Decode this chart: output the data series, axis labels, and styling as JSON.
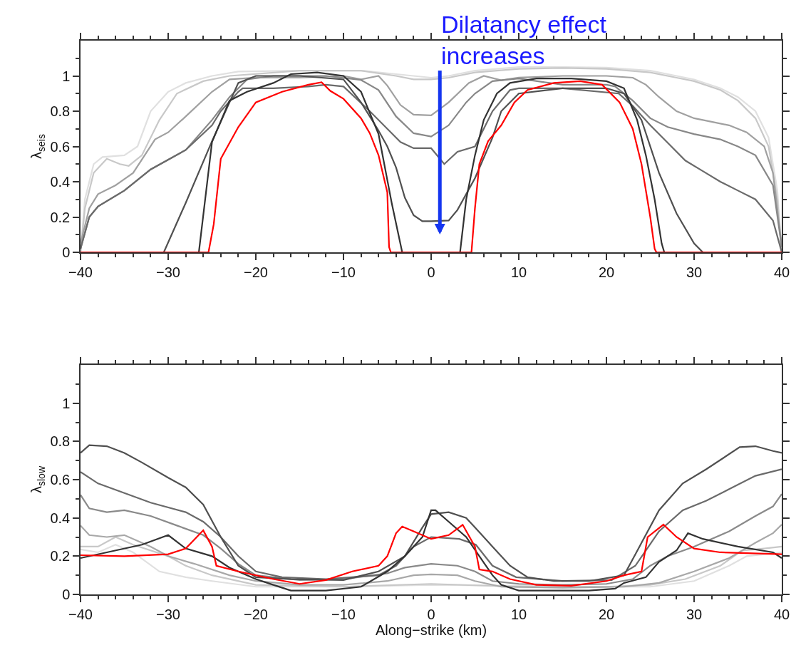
{
  "chart_data": [
    {
      "type": "line",
      "ylabel": "λ$_{seis}$",
      "xlim": [
        -40,
        40
      ],
      "ylim": [
        0,
        1.2
      ],
      "marker": "none",
      "line_style": "solid",
      "xticks": [
        {
          "value": -40,
          "label": "−40"
        },
        {
          "value": -38,
          "label": null
        },
        {
          "value": -36,
          "label": null
        },
        {
          "value": -34,
          "label": null
        },
        {
          "value": -32,
          "label": null
        },
        {
          "value": -30,
          "label": "−30"
        },
        {
          "value": -28,
          "label": null
        },
        {
          "value": -26,
          "label": null
        },
        {
          "value": -24,
          "label": null
        },
        {
          "value": -22,
          "label": null
        },
        {
          "value": -20,
          "label": "−20"
        },
        {
          "value": -18,
          "label": null
        },
        {
          "value": -16,
          "label": null
        },
        {
          "value": -14,
          "label": null
        },
        {
          "value": -12,
          "label": null
        },
        {
          "value": -10,
          "label": "−10"
        },
        {
          "value": -8,
          "label": null
        },
        {
          "value": -6,
          "label": null
        },
        {
          "value": -4,
          "label": null
        },
        {
          "value": -2,
          "label": null
        },
        0,
        {
          "value": 2,
          "label": null
        },
        {
          "value": 4,
          "label": null
        },
        {
          "value": 6,
          "label": null
        },
        {
          "value": 8,
          "label": null
        },
        10,
        {
          "value": 12,
          "label": null
        },
        {
          "value": 14,
          "label": null
        },
        {
          "value": 16,
          "label": null
        },
        {
          "value": 18,
          "label": null
        },
        20,
        {
          "value": 22,
          "label": null
        },
        {
          "value": 24,
          "label": null
        },
        {
          "value": 26,
          "label": null
        },
        {
          "value": 28,
          "label": null
        },
        30,
        {
          "value": 32,
          "label": null
        },
        {
          "value": 34,
          "label": null
        },
        {
          "value": 36,
          "label": null
        },
        {
          "value": 38,
          "label": null
        },
        40
      ],
      "yticks": [
        0,
        {
          "value": 0.1,
          "label": null
        },
        0.2,
        {
          "value": 0.3,
          "label": null
        },
        0.4,
        {
          "value": 0.5,
          "label": null
        },
        0.6,
        {
          "value": 0.7,
          "label": null
        },
        0.8,
        {
          "value": 0.9,
          "label": null
        },
        1,
        {
          "value": 1.1,
          "label": null
        }
      ],
      "annotations": [
        "Dilatancy effect\nincreases"
      ],
      "series": [
        {
          "color": "#e0e0e0",
          "x": [
            -40,
            -39.5,
            -38.5,
            -37.5,
            -35,
            -33.5,
            -32,
            -30,
            -28,
            -25,
            -22,
            -15,
            -8,
            -4,
            -2,
            0,
            2,
            5,
            10,
            15,
            20,
            25,
            28,
            30,
            33,
            35,
            37,
            38.5,
            39.5,
            40
          ],
          "values": [
            0,
            0.3,
            0.5,
            0.54,
            0.55,
            0.6,
            0.8,
            0.91,
            0.96,
            1.0,
            1.025,
            1.03,
            1.03,
            1.01,
            1.0,
            0.99,
            1.0,
            1.03,
            1.05,
            1.05,
            1.047,
            1.03,
            1.0,
            0.98,
            0.93,
            0.88,
            0.8,
            0.65,
            0.35,
            0
          ]
        },
        {
          "color": "#c8c8c8",
          "x": [
            -40,
            -39.5,
            -38.5,
            -37,
            -35.5,
            -34.5,
            -33,
            -31,
            -29,
            -26,
            -23,
            -15,
            -8,
            -4,
            -2,
            0,
            2,
            5,
            10,
            15,
            20,
            25,
            28,
            30,
            33,
            35,
            37,
            38.5,
            39.5,
            40
          ],
          "values": [
            0,
            0.25,
            0.45,
            0.53,
            0.5,
            0.49,
            0.55,
            0.75,
            0.9,
            0.97,
            1.0,
            1.03,
            1.03,
            1.0,
            0.98,
            0.98,
            0.99,
            1.02,
            1.04,
            1.045,
            1.04,
            1.02,
            0.99,
            0.97,
            0.92,
            0.86,
            0.76,
            0.6,
            0.3,
            0
          ]
        },
        {
          "color": "#a0a0a0",
          "x": [
            -40,
            -39,
            -38,
            -36,
            -34,
            -31.5,
            -30,
            -28,
            -25,
            -23,
            -20,
            -15,
            -10,
            -8,
            -6,
            -5,
            -3.5,
            -2,
            0,
            2,
            4.3,
            6,
            8,
            10,
            15,
            20,
            23,
            24.5,
            26,
            28,
            30,
            32,
            34,
            36,
            38,
            39,
            40
          ],
          "values": [
            0.05,
            0.25,
            0.33,
            0.38,
            0.45,
            0.64,
            0.68,
            0.77,
            0.91,
            0.98,
            0.99,
            0.99,
            1.0,
            0.98,
            1.0,
            0.945,
            0.835,
            0.78,
            0.776,
            0.85,
            0.96,
            1.0,
            0.975,
            0.99,
            1.0,
            1.0,
            0.99,
            0.95,
            0.88,
            0.8,
            0.76,
            0.74,
            0.72,
            0.68,
            0.6,
            0.45,
            0.03
          ]
        },
        {
          "color": "#888888",
          "x": [
            -40,
            -39,
            -38,
            -35,
            -32,
            -28,
            -25,
            -23,
            -21,
            -18,
            -12,
            -8,
            -6,
            -4,
            -2,
            0,
            2,
            4,
            5,
            7,
            10,
            15,
            20,
            21,
            23,
            25,
            27,
            30,
            33,
            35,
            37,
            39,
            40
          ],
          "values": [
            0.02,
            0.2,
            0.26,
            0.35,
            0.47,
            0.58,
            0.75,
            0.88,
            0.98,
            1.0,
            1.0,
            0.977,
            0.92,
            0.77,
            0.675,
            0.656,
            0.72,
            0.85,
            0.9,
            0.97,
            0.985,
            0.95,
            0.95,
            0.94,
            0.86,
            0.76,
            0.71,
            0.67,
            0.64,
            0.6,
            0.55,
            0.38,
            0.03
          ]
        },
        {
          "color": "#6a6a6a",
          "x": [
            -40,
            -39,
            -38,
            -35,
            -32,
            -28,
            -25,
            -24,
            -22,
            -21.5,
            -18,
            -14,
            -12,
            -10,
            -7,
            -5,
            -3.5,
            -2,
            0,
            1.5,
            3,
            5,
            7,
            9,
            10,
            15,
            21.4,
            23,
            25,
            27,
            29,
            31,
            33,
            35,
            37,
            39,
            40
          ],
          "values": [
            0.02,
            0.2,
            0.26,
            0.35,
            0.47,
            0.58,
            0.72,
            0.8,
            0.91,
            0.93,
            0.93,
            0.94,
            0.95,
            0.94,
            0.8,
            0.7,
            0.625,
            0.59,
            0.59,
            0.5,
            0.57,
            0.6,
            0.8,
            0.92,
            0.93,
            0.93,
            0.9,
            0.83,
            0.72,
            0.62,
            0.52,
            0.46,
            0.4,
            0.35,
            0.3,
            0.18,
            0.0
          ]
        },
        {
          "color": "#505050",
          "x": [
            -40,
            -30.5,
            -28,
            -25,
            -22,
            -20,
            -15,
            -10,
            -8,
            -6,
            -5,
            -4,
            -3,
            -2,
            -1,
            0,
            2,
            3,
            5,
            7,
            8,
            10,
            15,
            20,
            22,
            24,
            26,
            28,
            30,
            31,
            40
          ],
          "values": [
            0,
            0,
            0.28,
            0.63,
            0.96,
            1.0,
            1.0,
            0.98,
            0.85,
            0.69,
            0.6,
            0.48,
            0.31,
            0.21,
            0.176,
            0.176,
            0.18,
            0.24,
            0.42,
            0.65,
            0.8,
            0.9,
            0.93,
            0.93,
            0.9,
            0.75,
            0.45,
            0.22,
            0.05,
            0,
            0
          ]
        },
        {
          "color": "#333333",
          "x": [
            -40,
            -26.5,
            -25,
            -23,
            -21,
            -18,
            -16,
            -13,
            -10,
            -8,
            -6,
            -4.5,
            -3.3,
            3.3,
            4,
            5,
            6,
            7.5,
            9,
            12,
            16,
            20,
            22,
            23.5,
            24.5,
            25.5,
            26.3,
            26.6,
            40
          ],
          "values": [
            0,
            0,
            0.625,
            0.86,
            0.91,
            0.96,
            1.01,
            1.02,
            1.0,
            0.91,
            0.67,
            0.28,
            0,
            0,
            0.3,
            0.55,
            0.75,
            0.9,
            0.96,
            0.985,
            0.985,
            0.97,
            0.93,
            0.75,
            0.55,
            0.3,
            0.05,
            0,
            0
          ]
        },
        {
          "color": "#ff0000",
          "x": [
            -40,
            -25.4,
            -24.8,
            -24,
            -22,
            -20,
            -17,
            -14,
            -12.5,
            -11.5,
            -10,
            -8,
            -7,
            -6,
            -5,
            -4.8,
            -4.6,
            4.6,
            5,
            5.5,
            6.5,
            8,
            9.5,
            11,
            14,
            17,
            19.5,
            21.5,
            23,
            24,
            25,
            25.5,
            25.7,
            40
          ],
          "values": [
            0,
            0,
            0.16,
            0.53,
            0.71,
            0.85,
            0.91,
            0.95,
            0.964,
            0.915,
            0.87,
            0.76,
            0.675,
            0.55,
            0.34,
            0.03,
            0,
            0,
            0.25,
            0.5,
            0.63,
            0.72,
            0.85,
            0.92,
            0.96,
            0.97,
            0.95,
            0.85,
            0.7,
            0.5,
            0.2,
            0.02,
            0,
            0
          ]
        }
      ]
    },
    {
      "type": "line",
      "ylabel": "λ$_{slow}$",
      "xlabel": "Along−strike (km)",
      "xlim": [
        -40,
        40
      ],
      "ylim": [
        0,
        1.2
      ],
      "marker": "none",
      "line_style": "solid",
      "xticks": [
        {
          "value": -40,
          "label": "−40"
        },
        {
          "value": -38,
          "label": null
        },
        {
          "value": -36,
          "label": null
        },
        {
          "value": -34,
          "label": null
        },
        {
          "value": -32,
          "label": null
        },
        {
          "value": -30,
          "label": "−30"
        },
        {
          "value": -28,
          "label": null
        },
        {
          "value": -26,
          "label": null
        },
        {
          "value": -24,
          "label": null
        },
        {
          "value": -22,
          "label": null
        },
        {
          "value": -20,
          "label": "−20"
        },
        {
          "value": -18,
          "label": null
        },
        {
          "value": -16,
          "label": null
        },
        {
          "value": -14,
          "label": null
        },
        {
          "value": -12,
          "label": null
        },
        {
          "value": -10,
          "label": "−10"
        },
        {
          "value": -8,
          "label": null
        },
        {
          "value": -6,
          "label": null
        },
        {
          "value": -4,
          "label": null
        },
        {
          "value": -2,
          "label": null
        },
        0,
        {
          "value": 2,
          "label": null
        },
        {
          "value": 4,
          "label": null
        },
        {
          "value": 6,
          "label": null
        },
        {
          "value": 8,
          "label": null
        },
        10,
        {
          "value": 12,
          "label": null
        },
        {
          "value": 14,
          "label": null
        },
        {
          "value": 16,
          "label": null
        },
        {
          "value": 18,
          "label": null
        },
        20,
        {
          "value": 22,
          "label": null
        },
        {
          "value": 24,
          "label": null
        },
        {
          "value": 26,
          "label": null
        },
        {
          "value": 28,
          "label": null
        },
        30,
        {
          "value": 32,
          "label": null
        },
        {
          "value": 34,
          "label": null
        },
        {
          "value": 36,
          "label": null
        },
        {
          "value": 38,
          "label": null
        },
        40
      ],
      "yticks": [
        0,
        {
          "value": 0.1,
          "label": null
        },
        0.2,
        {
          "value": 0.3,
          "label": null
        },
        0.4,
        {
          "value": 0.5,
          "label": null
        },
        0.6,
        {
          "value": 0.7,
          "label": null
        },
        0.8,
        {
          "value": 0.9,
          "label": null
        },
        1,
        {
          "value": 1.1,
          "label": null
        }
      ],
      "series": [
        {
          "color": "#e0e0e0",
          "x": [
            -40,
            -38,
            -36,
            -34,
            -31,
            -28,
            -25,
            -20,
            -10,
            0,
            10,
            20,
            25,
            30,
            34,
            36,
            38,
            40
          ],
          "values": [
            0.235,
            0.22,
            0.26,
            0.22,
            0.12,
            0.09,
            0.07,
            0.04,
            0.04,
            0.05,
            0.045,
            0.04,
            0.04,
            0.07,
            0.15,
            0.2,
            0.21,
            0.22
          ]
        },
        {
          "color": "#c8c8c8",
          "x": [
            -40,
            -38,
            -36,
            -34,
            -30,
            -28,
            -25,
            -20,
            -10,
            0,
            10,
            20,
            25,
            29,
            33,
            35.5,
            38,
            40
          ],
          "values": [
            0.25,
            0.25,
            0.3,
            0.26,
            0.2,
            0.15,
            0.1,
            0.05,
            0.04,
            0.055,
            0.04,
            0.04,
            0.05,
            0.08,
            0.15,
            0.23,
            0.24,
            0.25
          ]
        },
        {
          "color": "#a8a8a8",
          "x": [
            -40,
            -39,
            -37,
            -35,
            -32,
            -30,
            -27,
            -23,
            -20,
            -15,
            -10,
            -5,
            -2,
            0,
            3,
            5,
            8,
            15,
            22,
            26,
            30,
            34,
            37,
            39,
            40
          ],
          "values": [
            0.36,
            0.31,
            0.3,
            0.31,
            0.25,
            0.2,
            0.16,
            0.1,
            0.07,
            0.05,
            0.05,
            0.07,
            0.1,
            0.105,
            0.1,
            0.07,
            0.04,
            0.035,
            0.04,
            0.06,
            0.12,
            0.19,
            0.27,
            0.32,
            0.365
          ]
        },
        {
          "color": "#8a8a8a",
          "x": [
            -40,
            -39,
            -37,
            -35,
            -32,
            -29,
            -26,
            -24,
            -22,
            -20,
            -15,
            -10,
            -5,
            -3,
            0,
            3,
            5,
            7,
            10,
            15,
            20,
            23,
            25,
            27,
            30,
            34,
            37,
            39,
            40
          ],
          "values": [
            0.52,
            0.45,
            0.43,
            0.44,
            0.41,
            0.36,
            0.31,
            0.24,
            0.16,
            0.1,
            0.075,
            0.08,
            0.11,
            0.14,
            0.16,
            0.15,
            0.12,
            0.07,
            0.055,
            0.05,
            0.055,
            0.08,
            0.15,
            0.2,
            0.25,
            0.33,
            0.41,
            0.46,
            0.525
          ]
        },
        {
          "color": "#6a6a6a",
          "x": [
            -40,
            -38,
            -35,
            -32,
            -28,
            -26,
            -24,
            -22,
            -20,
            -17,
            -12,
            -6,
            -4,
            -2,
            0,
            3.2,
            5.1,
            7,
            9.7,
            15,
            20.6,
            23.3,
            26,
            28.7,
            31.4,
            34.2,
            37,
            40
          ],
          "values": [
            0.64,
            0.58,
            0.53,
            0.48,
            0.43,
            0.38,
            0.3,
            0.2,
            0.12,
            0.09,
            0.08,
            0.1,
            0.15,
            0.25,
            0.3,
            0.29,
            0.26,
            0.15,
            0.09,
            0.07,
            0.075,
            0.15,
            0.33,
            0.44,
            0.49,
            0.555,
            0.62,
            0.655
          ]
        },
        {
          "color": "#505050",
          "x": [
            -40,
            -39,
            -37,
            -35,
            -33,
            -30,
            -28,
            -26,
            -24,
            -22,
            -20,
            -16,
            -10,
            -6,
            -3,
            -1,
            0,
            2,
            4,
            5,
            7,
            9,
            11,
            14,
            18,
            22,
            23.3,
            26,
            28.7,
            31.4,
            35.2,
            37,
            39,
            40
          ],
          "values": [
            0.74,
            0.78,
            0.775,
            0.74,
            0.69,
            0.61,
            0.56,
            0.47,
            0.3,
            0.15,
            0.09,
            0.08,
            0.075,
            0.12,
            0.2,
            0.35,
            0.42,
            0.43,
            0.4,
            0.35,
            0.25,
            0.15,
            0.09,
            0.07,
            0.07,
            0.1,
            0.21,
            0.44,
            0.58,
            0.655,
            0.77,
            0.775,
            0.75,
            0.74
          ]
        },
        {
          "color": "#333333",
          "x": [
            -40,
            -37,
            -33,
            -30,
            -28,
            -25,
            -23,
            -20,
            -18,
            -16,
            -12,
            -8,
            -5,
            -3,
            -1,
            0,
            0.5,
            2,
            4,
            5.5,
            7,
            8,
            10,
            18,
            21,
            22,
            24.5,
            26,
            28,
            29.3,
            31,
            35,
            39,
            40
          ],
          "values": [
            0.19,
            0.22,
            0.26,
            0.31,
            0.24,
            0.2,
            0.14,
            0.08,
            0.05,
            0.02,
            0.02,
            0.04,
            0.12,
            0.2,
            0.3,
            0.44,
            0.44,
            0.38,
            0.3,
            0.2,
            0.1,
            0.05,
            0.02,
            0.02,
            0.03,
            0.06,
            0.09,
            0.17,
            0.23,
            0.32,
            0.29,
            0.25,
            0.22,
            0.19
          ]
        },
        {
          "color": "#ff0000",
          "x": [
            -40,
            -35,
            -30,
            -28,
            -26,
            -25,
            -24.5,
            -22,
            -18,
            -15,
            -12,
            -9,
            -6,
            -5,
            -4,
            -3.3,
            -2,
            0,
            2,
            3.6,
            5,
            5.5,
            7,
            9,
            12,
            16,
            20,
            22,
            24,
            24.7,
            26.5,
            28,
            30,
            33,
            40
          ],
          "values": [
            0.205,
            0.2,
            0.21,
            0.24,
            0.335,
            0.25,
            0.15,
            0.12,
            0.08,
            0.055,
            0.075,
            0.12,
            0.15,
            0.2,
            0.32,
            0.355,
            0.33,
            0.29,
            0.31,
            0.364,
            0.25,
            0.13,
            0.12,
            0.08,
            0.05,
            0.045,
            0.07,
            0.1,
            0.12,
            0.3,
            0.365,
            0.3,
            0.24,
            0.22,
            0.21
          ]
        }
      ]
    }
  ]
}
